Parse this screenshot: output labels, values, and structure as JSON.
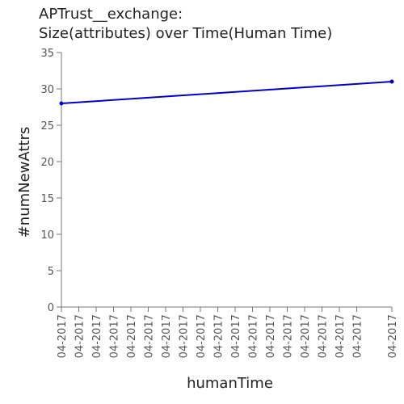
{
  "chart_data": {
    "type": "line",
    "title_lines": [
      "APTrust__exchange:",
      "Size(attributes) over Time(Human Time)"
    ],
    "xlabel": "humanTime",
    "ylabel": "#numNewAttrs",
    "x_tick_labels": [
      "04-2017",
      "04-2017",
      "04-2017",
      "04-2017",
      "04-2017",
      "04-2017",
      "04-2017",
      "04-2017",
      "04-2017",
      "04-2017",
      "04-2017",
      "04-2017",
      "04-2017",
      "04-2017",
      "04-2017",
      "04-2017",
      "04-2017",
      "04-2017",
      "04-2017"
    ],
    "y_ticks": [
      0,
      5,
      10,
      15,
      20,
      25,
      30,
      35
    ],
    "ylim": [
      0,
      35
    ],
    "grid": false,
    "series": [
      {
        "color": "#0000cc",
        "points": [
          {
            "x": 0,
            "y": 28
          },
          {
            "x": 1,
            "y": 31
          }
        ]
      }
    ],
    "x_range": [
      0,
      1
    ]
  }
}
